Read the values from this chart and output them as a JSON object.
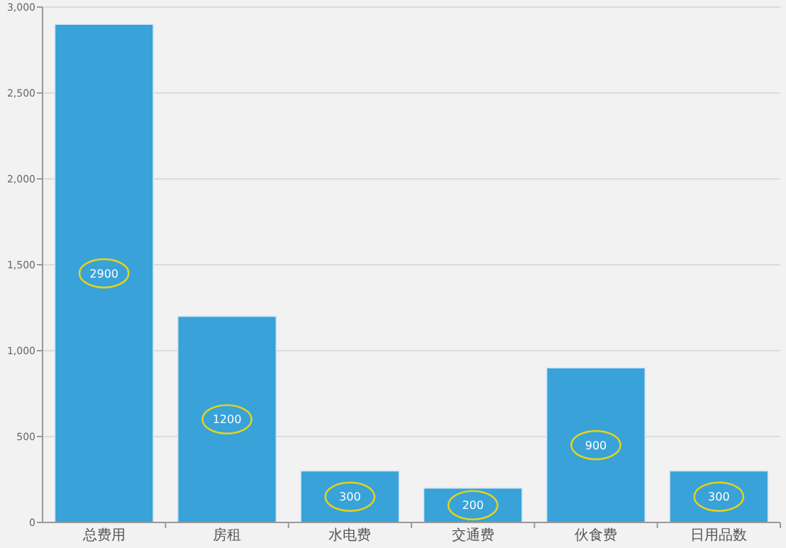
{
  "chart_data": {
    "type": "bar",
    "categories": [
      "总费用",
      "房租",
      "水电费",
      "交通费",
      "伙食费",
      "日用品数"
    ],
    "values": [
      2900,
      1200,
      300,
      200,
      900,
      300
    ],
    "color": "#38a2d9",
    "data_labels": true,
    "ylim": [
      0,
      3000
    ],
    "yticks": [
      {
        "value": 0,
        "label": "0"
      },
      {
        "value": 500,
        "label": "500"
      },
      {
        "value": 1000,
        "label": "1,000"
      },
      {
        "value": 1500,
        "label": "1,500"
      },
      {
        "value": 2000,
        "label": "2,000"
      },
      {
        "value": 2500,
        "label": "2,500"
      },
      {
        "value": 3000,
        "label": "3,000"
      }
    ],
    "grid": "y"
  }
}
